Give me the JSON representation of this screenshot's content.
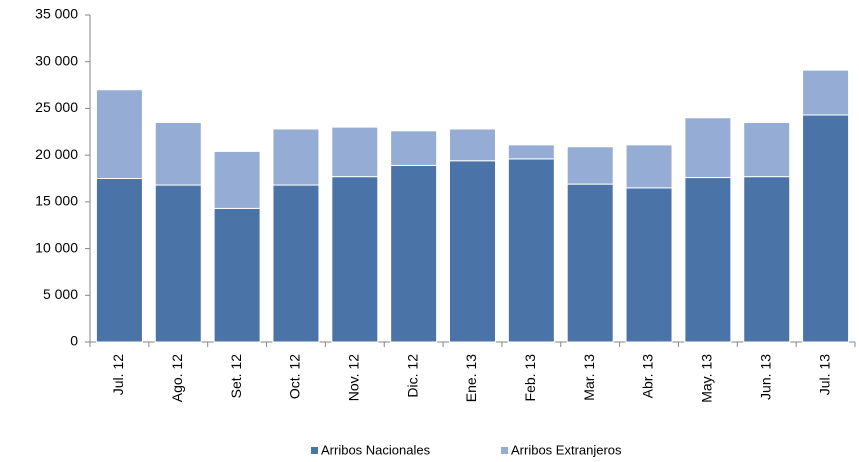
{
  "chart_data": {
    "type": "stacked_bar",
    "categories": [
      "Jul. 12",
      "Ago. 12",
      "Set. 12",
      "Oct. 12",
      "Nov. 12",
      "Dic. 12",
      "Ene. 13",
      "Feb. 13",
      "Mar. 13",
      "Abr. 13",
      "May. 13",
      "Jun. 13",
      "Jul. 13"
    ],
    "series": [
      {
        "name": "Arribos Nacionales",
        "color": "#4a74a8",
        "values": [
          17500,
          16800,
          14300,
          16800,
          17700,
          18900,
          19400,
          19600,
          16900,
          16500,
          17600,
          17700,
          24300
        ]
      },
      {
        "name": "Arribos Extranjeros",
        "color": "#95acd4",
        "values": [
          9500,
          6700,
          6100,
          6000,
          5300,
          3700,
          3400,
          1500,
          4000,
          4600,
          6400,
          5800,
          4800
        ]
      }
    ],
    "ylim": [
      0,
      35000
    ],
    "yticks": [
      0,
      {
        "value": 5000,
        "label": "5 000"
      },
      {
        "value": 10000,
        "label": "10 000"
      },
      {
        "value": 15000,
        "label": "15 000"
      },
      {
        "value": 20000,
        "label": "20 000"
      },
      {
        "value": 25000,
        "label": "25 000"
      },
      {
        "value": 30000,
        "label": "30 000"
      },
      {
        "value": 35000,
        "label": "35 000"
      }
    ],
    "grid": false,
    "legend": "bottom"
  }
}
